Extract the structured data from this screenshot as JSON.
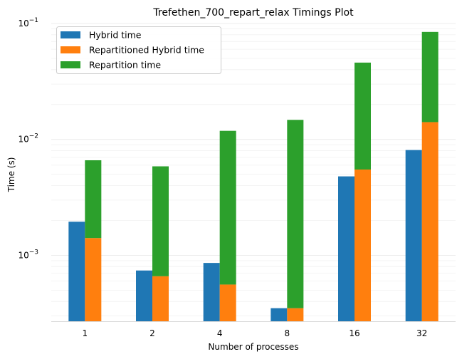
{
  "chart_data": {
    "type": "bar",
    "title": "Trefethen_700_repart_relax Timings Plot",
    "xlabel": "Number of processes",
    "ylabel": "Time (s)",
    "yscale": "log",
    "ylim": [
      0.00027,
      0.1
    ],
    "yticks": [
      {
        "value": 0.001,
        "base": "10",
        "exp": "−3"
      },
      {
        "value": 0.01,
        "base": "10",
        "exp": "−2"
      },
      {
        "value": 0.1,
        "base": "10",
        "exp": "−1"
      }
    ],
    "grid": true,
    "legend_position": "top-left",
    "categories": [
      "1",
      "2",
      "4",
      "8",
      "16",
      "32"
    ],
    "series": [
      {
        "name": "Hybrid time",
        "color": "#1f77b4",
        "stacked_on": null,
        "values": [
          0.00195,
          0.00074,
          0.00086,
          0.00035,
          0.0048,
          0.0081
        ]
      },
      {
        "name": "Repartitioned Hybrid time",
        "color": "#ff7f0e",
        "stacked_on": null,
        "values": [
          0.00141,
          0.00066,
          0.00056,
          0.00035,
          0.0055,
          0.0141
        ]
      },
      {
        "name": "Repartition time",
        "color": "#2ca02c",
        "stacked_on": "Repartitioned Hybrid time",
        "values": [
          0.0052,
          0.0052,
          0.0113,
          0.0144,
          0.0405,
          0.0705
        ]
      }
    ]
  }
}
